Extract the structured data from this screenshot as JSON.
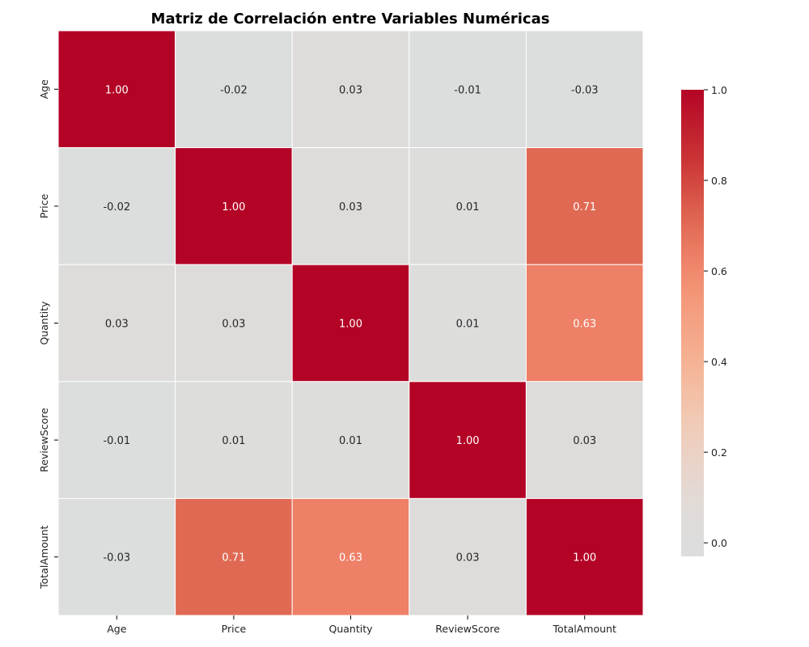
{
  "chart_data": {
    "type": "heatmap",
    "title": "Matriz de Correlación entre Variables Numéricas",
    "x_labels": [
      "Age",
      "Price",
      "Quantity",
      "ReviewScore",
      "TotalAmount"
    ],
    "y_labels": [
      "Age",
      "Price",
      "Quantity",
      "ReviewScore",
      "TotalAmount"
    ],
    "values": [
      [
        1.0,
        -0.02,
        0.03,
        -0.01,
        -0.03
      ],
      [
        -0.02,
        1.0,
        0.03,
        0.01,
        0.71
      ],
      [
        0.03,
        0.03,
        1.0,
        0.01,
        0.63
      ],
      [
        -0.01,
        0.01,
        0.01,
        1.0,
        0.03
      ],
      [
        -0.03,
        0.71,
        0.63,
        0.03,
        1.0
      ]
    ],
    "value_format": "0.00",
    "colormap": "coolwarm",
    "colorbar": {
      "range": [
        -0.03,
        1.0
      ],
      "ticks": [
        "0.0",
        "0.2",
        "0.4",
        "0.6",
        "0.8",
        "1.0"
      ],
      "tick_values": [
        0.0,
        0.2,
        0.4,
        0.6,
        0.8,
        1.0
      ]
    },
    "cell_border_color": "#ffffff"
  }
}
